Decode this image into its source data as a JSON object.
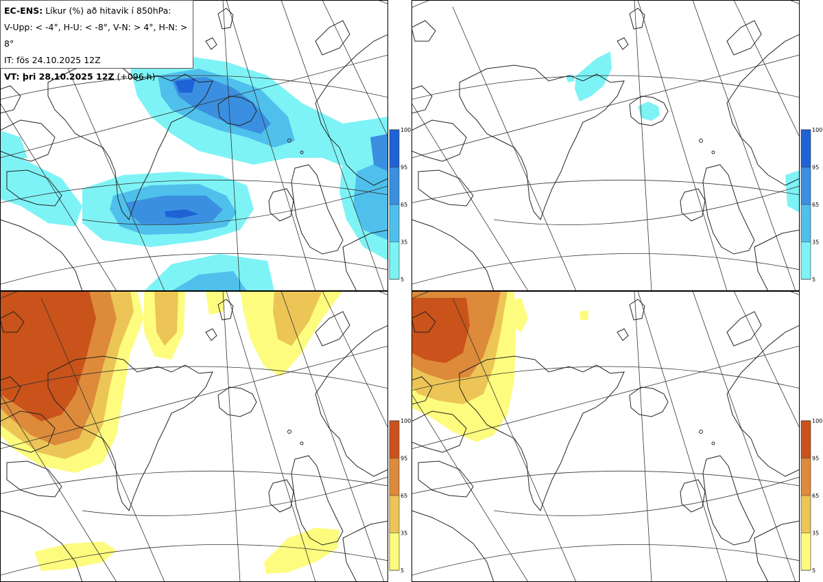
{
  "info": {
    "product": "EC-ENS:",
    "title": "Líkur (%) að hitavik í 850hPa:",
    "legend_line": "V-Upp: < -4°, H-U: < -8°, V-N: > 4°, H-N: > 8°",
    "init_time": "IT: fös 24.10.2025 12Z",
    "valid_label": "VT: þri 28.10.2025 12Z",
    "lead": "(+096 h)"
  },
  "panels": [
    {
      "id": "V-Upp",
      "palette": "cold",
      "content": "strong"
    },
    {
      "id": "H-U",
      "palette": "cold",
      "content": "weak"
    },
    {
      "id": "V-N",
      "palette": "warm",
      "content": "strong"
    },
    {
      "id": "H-N",
      "palette": "warm",
      "content": "weak"
    }
  ],
  "colorbar": {
    "ticks": [
      "100",
      "95",
      "65",
      "35",
      "5"
    ],
    "cold_colors": [
      "#1f62d6",
      "#3b8fe0",
      "#4fc0ec",
      "#7ef3f6"
    ],
    "warm_colors": [
      "#c9531a",
      "#dd8a3a",
      "#ecc556",
      "#fdfc7e"
    ]
  }
}
